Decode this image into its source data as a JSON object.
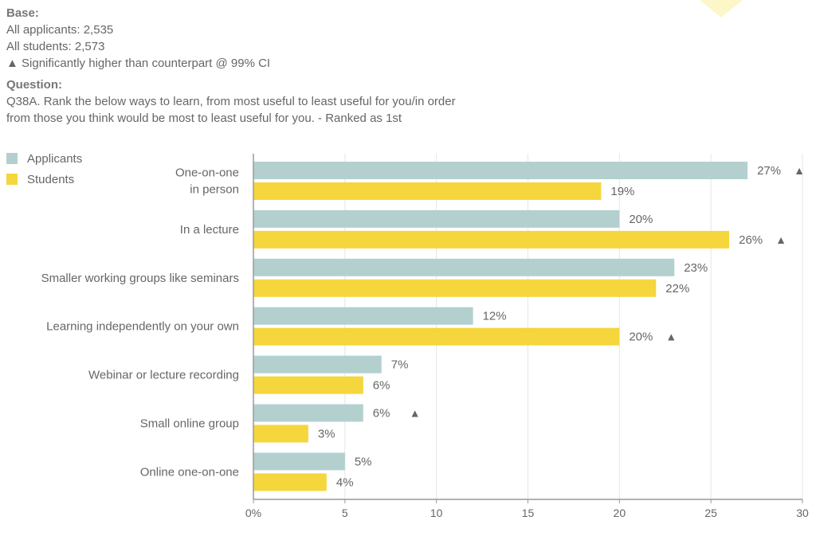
{
  "notes": {
    "base_heading": "Base:",
    "base_lines": [
      "All applicants: 2,535",
      "All students: 2,573",
      "▲ Significantly higher than counterpart @ 99% CI"
    ],
    "question_heading": "Question:",
    "question_lines": [
      "Q38A. Rank the below ways to learn, from most useful to least useful for you/in order",
      "from those you think would be most to least useful for you. - Ranked as 1st"
    ]
  },
  "colors": {
    "applicants": "#b3d0cf",
    "students": "#f5d63c",
    "axis": "#999999",
    "grid": "#e6e6e6",
    "text": "#666666",
    "marker": "#666666"
  },
  "chart_data": {
    "type": "bar",
    "orientation": "horizontal",
    "categories": [
      [
        "One-on-one",
        "in person"
      ],
      [
        "In a lecture"
      ],
      [
        "Smaller working groups like seminars"
      ],
      [
        "Learning independently on your own"
      ],
      [
        "Webinar or lecture recording"
      ],
      [
        "Small online group"
      ],
      [
        "Online one-on-one"
      ]
    ],
    "series": [
      {
        "name": "Applicants",
        "values": [
          27,
          20,
          23,
          12,
          7,
          6,
          5
        ],
        "labels": [
          "27%",
          "20%",
          "23%",
          "12%",
          "7%",
          "6%",
          "5%"
        ],
        "significant": [
          true,
          false,
          false,
          false,
          false,
          true,
          false
        ]
      },
      {
        "name": "Students",
        "values": [
          19,
          26,
          22,
          20,
          6,
          3,
          4
        ],
        "labels": [
          "19%",
          "26%",
          "22%",
          "20%",
          "6%",
          "3%",
          "4%"
        ],
        "significant": [
          false,
          true,
          false,
          true,
          false,
          false,
          false
        ]
      }
    ],
    "xlim": [
      0,
      30
    ],
    "xticks": [
      0,
      5,
      10,
      15,
      20,
      25,
      30
    ],
    "xtick_labels": [
      "0%",
      "5",
      "10",
      "15",
      "20",
      "25",
      "30"
    ],
    "grid": true,
    "legend_position": "top-left",
    "significance_marker": "▲"
  }
}
